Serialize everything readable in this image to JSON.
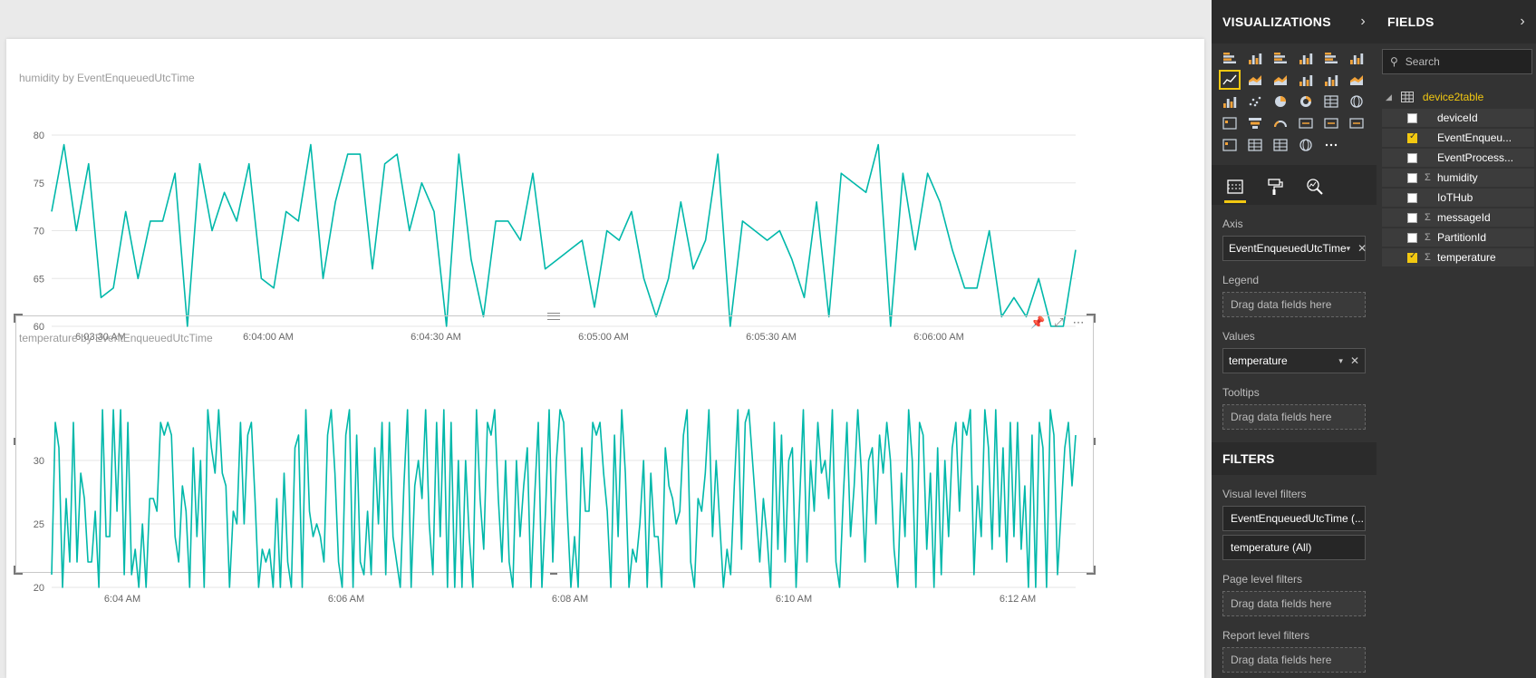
{
  "visualizations": {
    "header": "VISUALIZATIONS",
    "wells": {
      "axis_label": "Axis",
      "axis_field": "EventEnqueuedUtcTime",
      "legend_label": "Legend",
      "legend_placeholder": "Drag data fields here",
      "values_label": "Values",
      "values_field": "temperature",
      "tooltips_label": "Tooltips",
      "tooltips_placeholder": "Drag data fields here"
    },
    "filters": {
      "header": "FILTERS",
      "visual_level_label": "Visual level filters",
      "visual_filter_1": "EventEnqueuedUtcTime (...",
      "visual_filter_2": "temperature (All)",
      "page_level_label": "Page level filters",
      "page_placeholder": "Drag data fields here",
      "report_level_label": "Report level filters",
      "report_placeholder": "Drag data fields here"
    }
  },
  "fields": {
    "header": "FIELDS",
    "search_placeholder": "Search",
    "table_name": "device2table",
    "items": [
      {
        "name": "deviceId",
        "checked": false,
        "sigma": false
      },
      {
        "name": "EventEnqueu...",
        "checked": true,
        "sigma": false
      },
      {
        "name": "EventProcess...",
        "checked": false,
        "sigma": false
      },
      {
        "name": "humidity",
        "checked": false,
        "sigma": true
      },
      {
        "name": "IoTHub",
        "checked": false,
        "sigma": false
      },
      {
        "name": "messageId",
        "checked": false,
        "sigma": true
      },
      {
        "name": "PartitionId",
        "checked": false,
        "sigma": true
      },
      {
        "name": "temperature",
        "checked": true,
        "sigma": true
      }
    ]
  },
  "chart_data": [
    {
      "type": "line",
      "title": "humidity by EventEnqueuedUtcTime",
      "xlabel": "",
      "ylabel": "",
      "ylim": [
        60,
        80
      ],
      "yticks": [
        60,
        65,
        70,
        75,
        80
      ],
      "xticks": [
        "6:03:30 AM",
        "6:04:00 AM",
        "6:04:30 AM",
        "6:05:00 AM",
        "6:05:30 AM",
        "6:06:00 AM"
      ],
      "color": "#01b8aa",
      "grid": true,
      "series": [
        {
          "values": [
            72,
            79,
            70,
            77,
            63,
            64,
            72,
            65,
            71,
            71,
            76,
            60,
            77,
            70,
            74,
            71,
            77,
            65,
            64,
            72,
            71,
            79,
            65,
            73,
            78,
            78,
            66,
            77,
            78,
            70,
            75,
            72,
            60,
            78,
            67,
            61,
            71,
            71,
            69,
            76,
            66,
            67,
            68,
            69,
            62,
            70,
            69,
            72,
            65,
            61,
            65,
            73,
            66,
            69,
            78,
            60,
            71,
            70,
            69,
            70,
            67,
            63,
            73,
            61,
            76,
            75,
            74,
            79,
            60,
            76,
            68,
            76,
            73,
            68,
            64,
            64,
            70,
            61,
            63,
            61,
            65,
            60,
            60,
            68
          ]
        }
      ]
    },
    {
      "type": "line",
      "title": "temperature by EventEnqueuedUtcTime",
      "xlabel": "",
      "ylabel": "",
      "ylim": [
        20,
        35
      ],
      "yticks": [
        20,
        25,
        30
      ],
      "xticks": [
        "6:04 AM",
        "6:06 AM",
        "6:08 AM",
        "6:10 AM",
        "6:12 AM"
      ],
      "color": "#01b8aa",
      "grid": true,
      "series": [
        {
          "values": [
            21,
            33,
            31,
            20,
            27,
            22,
            33,
            22,
            29,
            27,
            22,
            22,
            26,
            20,
            34,
            24,
            24,
            34,
            26,
            34,
            21,
            33,
            21,
            23,
            20,
            25,
            20,
            27,
            27,
            26,
            33,
            32,
            33,
            32,
            24,
            22,
            28,
            26,
            20,
            31,
            24,
            30,
            20,
            34,
            31,
            29,
            34,
            29,
            28,
            20,
            26,
            25,
            33,
            25,
            32,
            33,
            27,
            20,
            23,
            22,
            23,
            20,
            27,
            20,
            29,
            22,
            20,
            31,
            32,
            20,
            34,
            26,
            24,
            25,
            24,
            22,
            32,
            34,
            29,
            22,
            20,
            32,
            34,
            20,
            32,
            22,
            21,
            26,
            21,
            31,
            25,
            33,
            21,
            33,
            24,
            22,
            20,
            28,
            34,
            20,
            28,
            30,
            27,
            34,
            25,
            21,
            33,
            24,
            34,
            20,
            33,
            20,
            30,
            20,
            30,
            24,
            20,
            34,
            27,
            23,
            33,
            32,
            34,
            27,
            22,
            30,
            22,
            20,
            30,
            24,
            28,
            31,
            20,
            27,
            33,
            20,
            26,
            34,
            22,
            30,
            34,
            33,
            26,
            20,
            24,
            20,
            31,
            26,
            26,
            33,
            32,
            33,
            29,
            26,
            20,
            32,
            24,
            34,
            29,
            20,
            23,
            22,
            25,
            30,
            20,
            29,
            24,
            24,
            20,
            31,
            28,
            27,
            25,
            26,
            32,
            34,
            22,
            20,
            27,
            26,
            29,
            34,
            24,
            30,
            25,
            20,
            23,
            21,
            28,
            34,
            23,
            33,
            34,
            30,
            26,
            22,
            27,
            24,
            20,
            33,
            23,
            32,
            22,
            30,
            31,
            20,
            27,
            34,
            22,
            30,
            26,
            33,
            29,
            30,
            27,
            34,
            22,
            20,
            27,
            33,
            24,
            28,
            34,
            29,
            22,
            30,
            31,
            25,
            32,
            29,
            33,
            30,
            23,
            20,
            29,
            24,
            34,
            30,
            20,
            33,
            32,
            23,
            29,
            20,
            31,
            21,
            30,
            24,
            31,
            33,
            26,
            33,
            32,
            34,
            21,
            28,
            24,
            34,
            31,
            23,
            34,
            24,
            31,
            22,
            33,
            24,
            33,
            23,
            28,
            20,
            32,
            20,
            33,
            31,
            20,
            34,
            32,
            21,
            26,
            31,
            33,
            28,
            32
          ]
        }
      ]
    }
  ]
}
